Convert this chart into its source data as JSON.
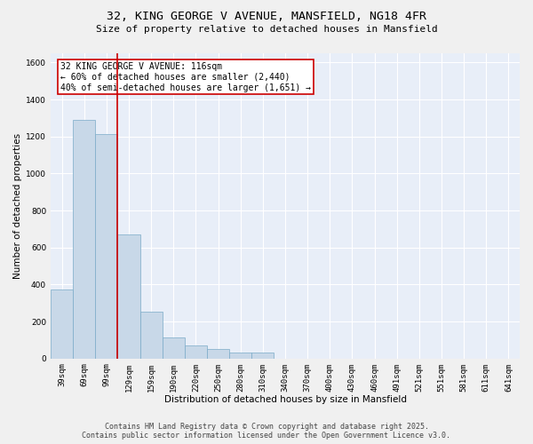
{
  "title_line1": "32, KING GEORGE V AVENUE, MANSFIELD, NG18 4FR",
  "title_line2": "Size of property relative to detached houses in Mansfield",
  "xlabel": "Distribution of detached houses by size in Mansfield",
  "ylabel": "Number of detached properties",
  "categories": [
    "39sqm",
    "69sqm",
    "99sqm",
    "129sqm",
    "159sqm",
    "190sqm",
    "220sqm",
    "250sqm",
    "280sqm",
    "310sqm",
    "340sqm",
    "370sqm",
    "400sqm",
    "430sqm",
    "460sqm",
    "491sqm",
    "521sqm",
    "551sqm",
    "581sqm",
    "611sqm",
    "641sqm"
  ],
  "values": [
    375,
    1290,
    1215,
    670,
    255,
    115,
    70,
    50,
    30,
    30,
    0,
    0,
    0,
    0,
    0,
    0,
    0,
    0,
    0,
    0,
    0
  ],
  "bar_color": "#c8d8e8",
  "bar_edge_color": "#7aaac8",
  "vline_color": "#cc0000",
  "vline_x_index": 2.5,
  "annotation_text": "32 KING GEORGE V AVENUE: 116sqm\n← 60% of detached houses are smaller (2,440)\n40% of semi-detached houses are larger (1,651) →",
  "annotation_box_color": "#cc0000",
  "annotation_text_color": "#000000",
  "ylim": [
    0,
    1650
  ],
  "yticks": [
    0,
    200,
    400,
    600,
    800,
    1000,
    1200,
    1400,
    1600
  ],
  "background_color": "#e8eef8",
  "grid_color": "#ffffff",
  "footer_line1": "Contains HM Land Registry data © Crown copyright and database right 2025.",
  "footer_line2": "Contains public sector information licensed under the Open Government Licence v3.0.",
  "title_fontsize": 9.5,
  "subtitle_fontsize": 8,
  "axis_label_fontsize": 7.5,
  "tick_fontsize": 6.5,
  "annotation_fontsize": 7,
  "footer_fontsize": 6
}
